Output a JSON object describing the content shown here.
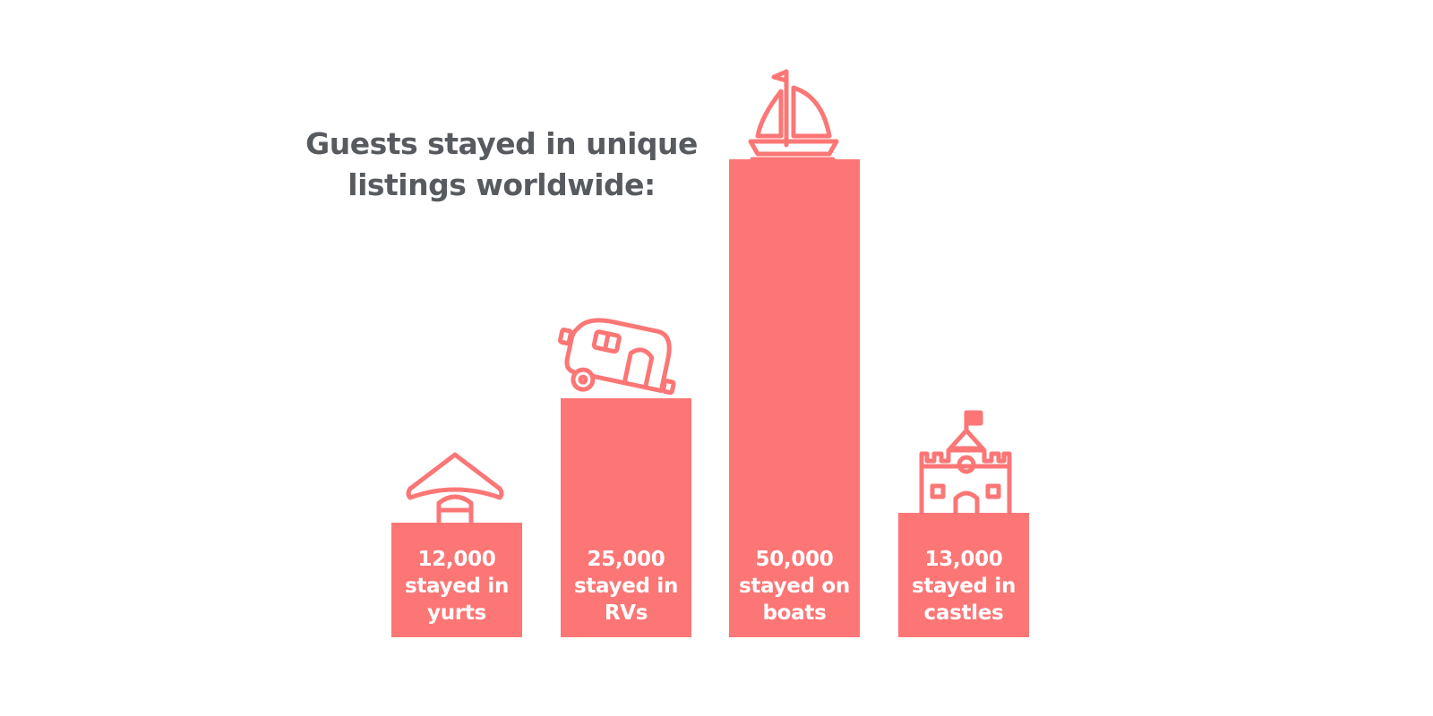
{
  "title": {
    "line1": "Guests stayed in unique",
    "line2": "listings worldwide:"
  },
  "chart_data": {
    "type": "bar",
    "title": "Guests stayed in unique listings worldwide:",
    "categories": [
      "yurts",
      "RVs",
      "boats",
      "castles"
    ],
    "values": [
      12000,
      25000,
      50000,
      13000
    ],
    "labels": [
      [
        "12,000",
        "stayed in",
        "yurts"
      ],
      [
        "25,000",
        "stayed in",
        "RVs"
      ],
      [
        "50,000",
        "stayed on",
        "boats"
      ],
      [
        "13,000",
        "stayed in",
        "castles"
      ]
    ],
    "icons": [
      "yurt-icon",
      "rv-trailer-icon",
      "sailboat-icon",
      "castle-icon"
    ],
    "color": "#fc7676",
    "ylim": [
      0,
      50000
    ],
    "grid": false,
    "legend": "none"
  }
}
